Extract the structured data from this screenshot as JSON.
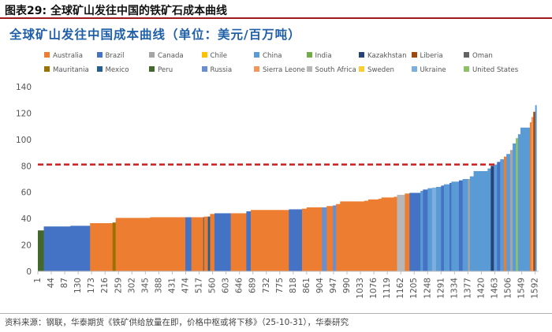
{
  "figure_title": "图表29:  全球矿山发往中国的铁矿石成本曲线",
  "source": "资料来源：钢联，华泰期货《铁矿供给放量在即，价格中枢或将下移》（25-10-31），华泰研究",
  "chart_data": {
    "type": "bar",
    "title": "全球矿山发往中国成本曲线（单位：美元/百万吨）",
    "xlabel": "",
    "ylabel": "",
    "ylim": [
      0,
      140
    ],
    "xlim": [
      1,
      1603
    ],
    "yticks": [
      0,
      20,
      40,
      60,
      80,
      100,
      120,
      140
    ],
    "xticks": [
      "1",
      "44",
      "87",
      "130",
      "173",
      "216",
      "259",
      "302",
      "345",
      "388",
      "431",
      "474",
      "517",
      "560",
      "603",
      "646",
      "689",
      "732",
      "775",
      "818",
      "861",
      "904",
      "947",
      "990",
      "1033",
      "1076",
      "1119",
      "1162",
      "1205",
      "1248",
      "1291",
      "1334",
      "1377",
      "1420",
      "1463",
      "1506",
      "1549",
      "1592"
    ],
    "reference_line": {
      "value": 81,
      "style": "dashed",
      "color": "#cc1f1f"
    },
    "countries": [
      {
        "name": "Australia",
        "color": "#ed7d31"
      },
      {
        "name": "Brazil",
        "color": "#4472c4"
      },
      {
        "name": "Canada",
        "color": "#a5a5a5"
      },
      {
        "name": "Chile",
        "color": "#ffc000"
      },
      {
        "name": "China",
        "color": "#5b9bd5"
      },
      {
        "name": "India",
        "color": "#70ad47"
      },
      {
        "name": "Kazakhstan",
        "color": "#264478"
      },
      {
        "name": "Liberia",
        "color": "#9e480e"
      },
      {
        "name": "Oman",
        "color": "#636363"
      },
      {
        "name": "Mauritania",
        "color": "#997300"
      },
      {
        "name": "Mexico",
        "color": "#255e91"
      },
      {
        "name": "Peru",
        "color": "#43682b"
      },
      {
        "name": "Russia",
        "color": "#698ed0"
      },
      {
        "name": "Sierra Leone",
        "color": "#f1975a"
      },
      {
        "name": "South Africa",
        "color": "#b7b7b7"
      },
      {
        "name": "Sweden",
        "color": "#ffcd33"
      },
      {
        "name": "Ukraine",
        "color": "#7cafdd"
      },
      {
        "name": "United States",
        "color": "#8cc168"
      }
    ],
    "segments": [
      {
        "x0": 1,
        "x1": 20,
        "value": 31,
        "country": "Peru"
      },
      {
        "x0": 20,
        "x1": 105,
        "value": 34,
        "country": "Brazil"
      },
      {
        "x0": 105,
        "x1": 168,
        "value": 34.5,
        "country": "Brazil"
      },
      {
        "x0": 168,
        "x1": 240,
        "value": 36.5,
        "country": "Australia"
      },
      {
        "x0": 240,
        "x1": 250,
        "value": 37,
        "country": "Mauritania"
      },
      {
        "x0": 250,
        "x1": 360,
        "value": 40.5,
        "country": "Australia"
      },
      {
        "x0": 360,
        "x1": 473,
        "value": 41,
        "country": "Australia"
      },
      {
        "x0": 473,
        "x1": 492,
        "value": 41,
        "country": "Brazil"
      },
      {
        "x0": 492,
        "x1": 530,
        "value": 41,
        "country": "Australia"
      },
      {
        "x0": 530,
        "x1": 533,
        "value": 41,
        "country": "Oman"
      },
      {
        "x0": 533,
        "x1": 545,
        "value": 41.5,
        "country": "Australia"
      },
      {
        "x0": 545,
        "x1": 552,
        "value": 41.5,
        "country": "Mexico"
      },
      {
        "x0": 552,
        "x1": 566,
        "value": 43.5,
        "country": "Australia"
      },
      {
        "x0": 566,
        "x1": 618,
        "value": 44,
        "country": "Brazil"
      },
      {
        "x0": 618,
        "x1": 668,
        "value": 44,
        "country": "Australia"
      },
      {
        "x0": 668,
        "x1": 682,
        "value": 45.5,
        "country": "Brazil"
      },
      {
        "x0": 682,
        "x1": 804,
        "value": 46.5,
        "country": "Australia"
      },
      {
        "x0": 804,
        "x1": 846,
        "value": 47,
        "country": "Brazil"
      },
      {
        "x0": 846,
        "x1": 861,
        "value": 47.5,
        "country": "Australia"
      },
      {
        "x0": 861,
        "x1": 910,
        "value": 48.5,
        "country": "Australia"
      },
      {
        "x0": 910,
        "x1": 925,
        "value": 48.5,
        "country": "Russia"
      },
      {
        "x0": 925,
        "x1": 945,
        "value": 49.5,
        "country": "Australia"
      },
      {
        "x0": 945,
        "x1": 955,
        "value": 50,
        "country": "Russia"
      },
      {
        "x0": 955,
        "x1": 968,
        "value": 51,
        "country": "Australia"
      },
      {
        "x0": 968,
        "x1": 1045,
        "value": 53,
        "country": "Australia"
      },
      {
        "x0": 1045,
        "x1": 1058,
        "value": 53.5,
        "country": "Australia"
      },
      {
        "x0": 1058,
        "x1": 1090,
        "value": 54.5,
        "country": "Australia"
      },
      {
        "x0": 1090,
        "x1": 1100,
        "value": 55,
        "country": "Australia"
      },
      {
        "x0": 1100,
        "x1": 1140,
        "value": 56,
        "country": "Australia"
      },
      {
        "x0": 1140,
        "x1": 1150,
        "value": 56.5,
        "country": "Australia"
      },
      {
        "x0": 1150,
        "x1": 1175,
        "value": 58,
        "country": "South Africa"
      },
      {
        "x0": 1175,
        "x1": 1190,
        "value": 59,
        "country": "Australia"
      },
      {
        "x0": 1190,
        "x1": 1225,
        "value": 59.5,
        "country": "Brazil"
      },
      {
        "x0": 1225,
        "x1": 1233,
        "value": 61,
        "country": "China"
      },
      {
        "x0": 1233,
        "x1": 1248,
        "value": 62,
        "country": "Brazil"
      },
      {
        "x0": 1248,
        "x1": 1262,
        "value": 63,
        "country": "China"
      },
      {
        "x0": 1262,
        "x1": 1275,
        "value": 63.5,
        "country": "Ukraine"
      },
      {
        "x0": 1275,
        "x1": 1291,
        "value": 64,
        "country": "China"
      },
      {
        "x0": 1291,
        "x1": 1300,
        "value": 65,
        "country": "Brazil"
      },
      {
        "x0": 1300,
        "x1": 1318,
        "value": 66,
        "country": "China"
      },
      {
        "x0": 1318,
        "x1": 1324,
        "value": 67,
        "country": "Brazil"
      },
      {
        "x0": 1324,
        "x1": 1348,
        "value": 68,
        "country": "China"
      },
      {
        "x0": 1348,
        "x1": 1360,
        "value": 69,
        "country": "Brazil"
      },
      {
        "x0": 1360,
        "x1": 1377,
        "value": 70,
        "country": "China"
      },
      {
        "x0": 1377,
        "x1": 1383,
        "value": 70,
        "country": "Canada"
      },
      {
        "x0": 1383,
        "x1": 1395,
        "value": 72,
        "country": "China"
      },
      {
        "x0": 1395,
        "x1": 1440,
        "value": 76,
        "country": "China"
      },
      {
        "x0": 1440,
        "x1": 1450,
        "value": 78,
        "country": "China"
      },
      {
        "x0": 1450,
        "x1": 1460,
        "value": 80,
        "country": "Kazakhstan"
      },
      {
        "x0": 1460,
        "x1": 1470,
        "value": 81,
        "country": "China"
      },
      {
        "x0": 1470,
        "x1": 1480,
        "value": 83,
        "country": "Brazil"
      },
      {
        "x0": 1480,
        "x1": 1492,
        "value": 85,
        "country": "China"
      },
      {
        "x0": 1492,
        "x1": 1500,
        "value": 87,
        "country": "Australia"
      },
      {
        "x0": 1500,
        "x1": 1512,
        "value": 89,
        "country": "China"
      },
      {
        "x0": 1512,
        "x1": 1520,
        "value": 92,
        "country": "Canada"
      },
      {
        "x0": 1520,
        "x1": 1530,
        "value": 97,
        "country": "China"
      },
      {
        "x0": 1530,
        "x1": 1537,
        "value": 101,
        "country": "United States"
      },
      {
        "x0": 1537,
        "x1": 1545,
        "value": 104,
        "country": "China"
      },
      {
        "x0": 1545,
        "x1": 1553,
        "value": 109,
        "country": "China"
      },
      {
        "x0": 1553,
        "x1": 1575,
        "value": 109,
        "country": "China"
      },
      {
        "x0": 1575,
        "x1": 1580,
        "value": 113,
        "country": "Australia"
      },
      {
        "x0": 1580,
        "x1": 1586,
        "value": 117,
        "country": "Sierra Leone"
      },
      {
        "x0": 1586,
        "x1": 1592,
        "value": 121,
        "country": "Liberia"
      },
      {
        "x0": 1592,
        "x1": 1596,
        "value": 126,
        "country": "China"
      }
    ]
  }
}
